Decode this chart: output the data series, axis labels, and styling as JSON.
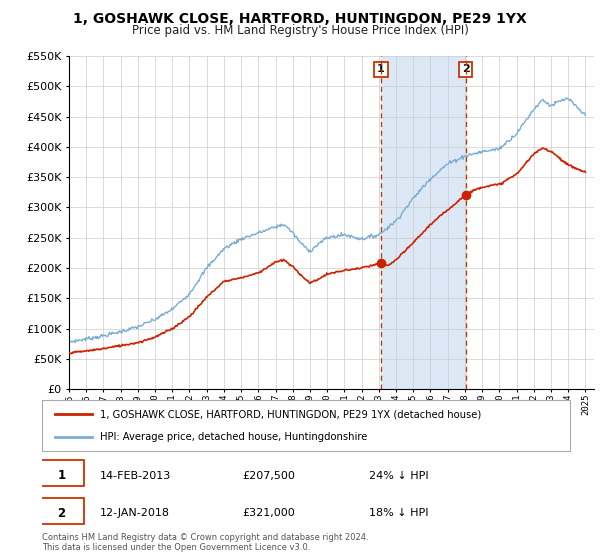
{
  "title": "1, GOSHAWK CLOSE, HARTFORD, HUNTINGDON, PE29 1YX",
  "subtitle": "Price paid vs. HM Land Registry's House Price Index (HPI)",
  "legend_line1": "1, GOSHAWK CLOSE, HARTFORD, HUNTINGDON, PE29 1YX (detached house)",
  "legend_line2": "HPI: Average price, detached house, Huntingdonshire",
  "sale1_label": "1",
  "sale1_date": "14-FEB-2013",
  "sale1_price": "£207,500",
  "sale1_hpi": "24% ↓ HPI",
  "sale1_year": 2013.12,
  "sale1_value": 207500,
  "sale2_label": "2",
  "sale2_date": "12-JAN-2018",
  "sale2_price": "£321,000",
  "sale2_hpi": "18% ↓ HPI",
  "sale2_year": 2018.04,
  "sale2_value": 321000,
  "footer1": "Contains HM Land Registry data © Crown copyright and database right 2024.",
  "footer2": "This data is licensed under the Open Government Licence v3.0.",
  "hpi_color": "#7aadd4",
  "price_color": "#cc2200",
  "vline_color": "#cc3300",
  "span_color": "#dce8f5",
  "grid_color": "#cccccc",
  "ylim_min": 0,
  "ylim_max": 550000,
  "xlim_start": 1995.0,
  "xlim_end": 2025.5,
  "hpi_anchors": [
    [
      1995.0,
      78000
    ],
    [
      1996.0,
      83000
    ],
    [
      1997.0,
      88000
    ],
    [
      1998.0,
      95000
    ],
    [
      1999.0,
      103000
    ],
    [
      2000.0,
      115000
    ],
    [
      2001.0,
      132000
    ],
    [
      2002.0,
      158000
    ],
    [
      2003.0,
      200000
    ],
    [
      2004.0,
      232000
    ],
    [
      2005.0,
      248000
    ],
    [
      2006.0,
      258000
    ],
    [
      2007.0,
      268000
    ],
    [
      2007.5,
      272000
    ],
    [
      2008.0,
      258000
    ],
    [
      2008.5,
      240000
    ],
    [
      2009.0,
      228000
    ],
    [
      2009.5,
      240000
    ],
    [
      2010.0,
      250000
    ],
    [
      2011.0,
      255000
    ],
    [
      2012.0,
      248000
    ],
    [
      2013.0,
      255000
    ],
    [
      2014.0,
      278000
    ],
    [
      2015.0,
      315000
    ],
    [
      2016.0,
      348000
    ],
    [
      2017.0,
      372000
    ],
    [
      2018.0,
      385000
    ],
    [
      2019.0,
      392000
    ],
    [
      2020.0,
      397000
    ],
    [
      2021.0,
      422000
    ],
    [
      2022.0,
      462000
    ],
    [
      2022.5,
      478000
    ],
    [
      2023.0,
      468000
    ],
    [
      2023.5,
      475000
    ],
    [
      2024.0,
      480000
    ],
    [
      2024.5,
      465000
    ],
    [
      2025.0,
      452000
    ]
  ],
  "price_anchors": [
    [
      1995.0,
      60000
    ],
    [
      1996.0,
      63000
    ],
    [
      1997.0,
      67000
    ],
    [
      1998.0,
      72000
    ],
    [
      1999.0,
      77000
    ],
    [
      2000.0,
      86000
    ],
    [
      2001.0,
      100000
    ],
    [
      2002.0,
      120000
    ],
    [
      2003.0,
      152000
    ],
    [
      2004.0,
      178000
    ],
    [
      2005.0,
      184000
    ],
    [
      2006.0,
      192000
    ],
    [
      2007.0,
      210000
    ],
    [
      2007.5,
      213000
    ],
    [
      2008.0,
      202000
    ],
    [
      2008.5,
      188000
    ],
    [
      2009.0,
      175000
    ],
    [
      2009.5,
      182000
    ],
    [
      2010.0,
      190000
    ],
    [
      2011.0,
      196000
    ],
    [
      2012.0,
      200000
    ],
    [
      2013.1,
      207500
    ],
    [
      2013.5,
      204000
    ],
    [
      2014.0,
      213000
    ],
    [
      2015.0,
      242000
    ],
    [
      2016.0,
      272000
    ],
    [
      2017.0,
      296000
    ],
    [
      2018.04,
      321000
    ],
    [
      2018.5,
      328000
    ],
    [
      2019.0,
      334000
    ],
    [
      2020.0,
      338000
    ],
    [
      2021.0,
      355000
    ],
    [
      2022.0,
      388000
    ],
    [
      2022.5,
      398000
    ],
    [
      2023.0,
      393000
    ],
    [
      2024.0,
      370000
    ],
    [
      2025.0,
      358000
    ]
  ]
}
